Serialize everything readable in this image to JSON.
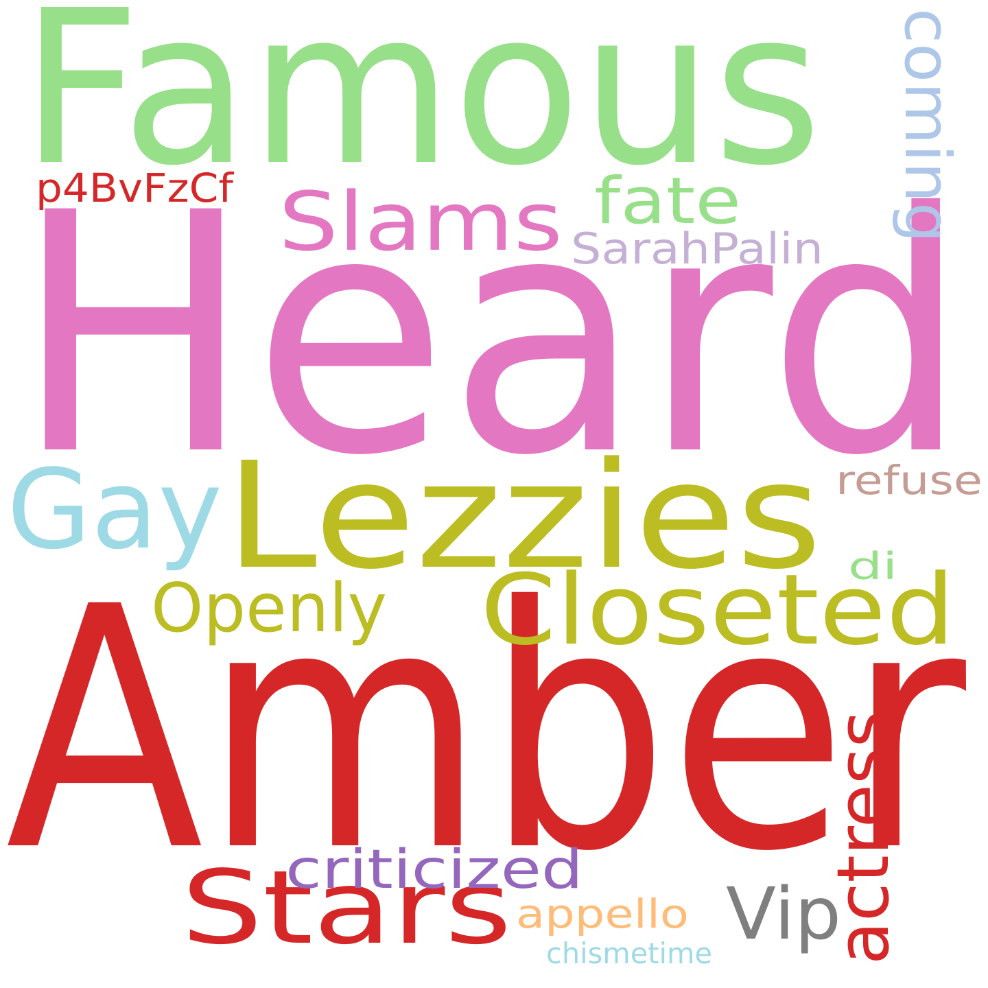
{
  "words": [
    {
      "text": "Famous",
      "color": "#98df8a"
    },
    {
      "text": "Heard",
      "color": "#e377c2"
    },
    {
      "text": "Amber",
      "color": "#d62728"
    },
    {
      "text": "Lezzies",
      "color": "#bcbd22"
    },
    {
      "text": "Gay",
      "color": "#9edae5"
    },
    {
      "text": "Closeted",
      "color": "#bcbd22"
    },
    {
      "text": "Slams",
      "color": "#e377c2"
    },
    {
      "text": "fate",
      "color": "#98df8a"
    },
    {
      "text": "coming",
      "color": "#aec7e8"
    },
    {
      "text": "SarahPalin",
      "color": "#c5b0d5"
    },
    {
      "text": "p4BvFzCf",
      "color": "#d62728"
    },
    {
      "text": "refuse",
      "color": "#c49c94"
    },
    {
      "text": "di",
      "color": "#98df8a"
    },
    {
      "text": "Openly",
      "color": "#bcbd22"
    },
    {
      "text": "Stars",
      "color": "#d62728"
    },
    {
      "text": "criticized",
      "color": "#9467bd"
    },
    {
      "text": "Vip",
      "color": "#7f7f7f"
    },
    {
      "text": "actress",
      "color": "#d62728"
    },
    {
      "text": "appello",
      "color": "#ffbb78"
    },
    {
      "text": "chismetime",
      "color": "#9edae5"
    }
  ]
}
